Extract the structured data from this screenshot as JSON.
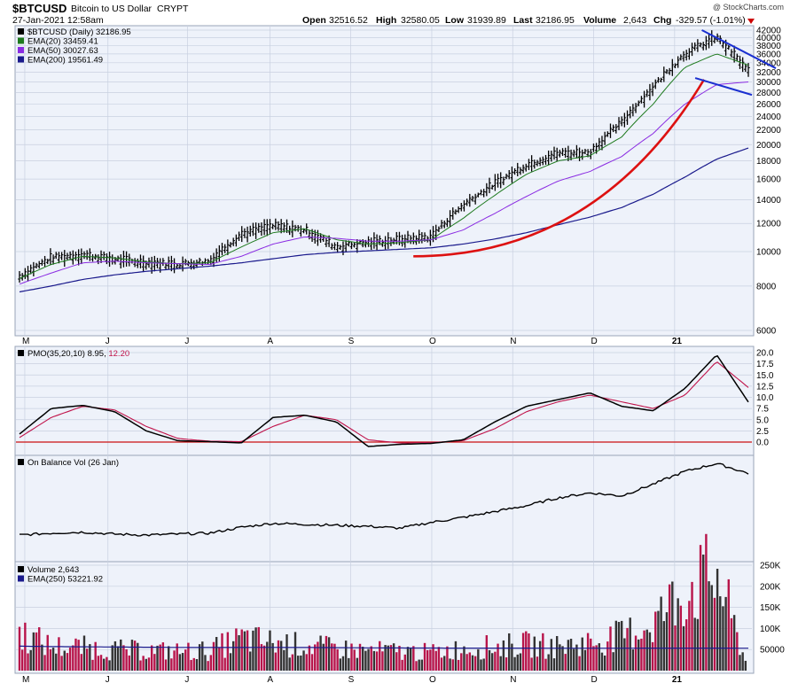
{
  "header": {
    "symbol": "$BTCUSD",
    "name": "Bitcoin to US Dollar",
    "exchange": "CRYPT",
    "timestamp": "27-Jan-2021 12:58am",
    "watermark": "@ StockCharts.com",
    "open_label": "Open",
    "open_value": "32516.52",
    "high_label": "High",
    "high_value": "32580.05",
    "low_label": "Low",
    "low_value": "31939.89",
    "last_label": "Last",
    "last_value": "32186.95",
    "volume_label": "Volume",
    "volume_value": "2,643",
    "chg_label": "Chg",
    "chg_value": "-329.57 (-1.01%)"
  },
  "colors": {
    "background": "#ffffff",
    "panel_background": "#eef2fa",
    "grid": "#c8d0e0",
    "price_bars": "#000000",
    "ema20": "#1e7a1e",
    "ema50": "#8a2be2",
    "ema200": "#1a1a8c",
    "red_curve": "#dd1111",
    "trendlines": "#1a2fd0",
    "pmo": "#000000",
    "pmo_signal": "#c0134a",
    "zero_line": "#cc1111",
    "volume_up": "#b8144a",
    "volume_down": "#333333",
    "volume_ema": "#1a1a8c",
    "chg_down": "#cc0000"
  },
  "price_panel": {
    "legend": [
      {
        "text": "$BTCUSD (Daily) 32186.95",
        "color": "#000000"
      },
      {
        "text": "EMA(20) 33459.41",
        "color": "#1e7a1e"
      },
      {
        "text": "EMA(50) 30027.63",
        "color": "#8a2be2"
      },
      {
        "text": "EMA(200) 19561.49",
        "color": "#1a1a8c"
      }
    ],
    "y_ticks": [
      "42000",
      "40000",
      "38000",
      "36000",
      "34000",
      "32000",
      "30000",
      "28000",
      "26000",
      "24000",
      "22000",
      "20000",
      "18000",
      "16000",
      "14000",
      "12000",
      "10000",
      "8000",
      "6000"
    ]
  },
  "pmo_panel": {
    "label": "PMO(35,20,10)",
    "value": "8.95",
    "signal_value": "12.20",
    "y_ticks": [
      "20.0",
      "17.5",
      "15.0",
      "12.5",
      "10.0",
      "7.5",
      "5.0",
      "2.5",
      "0.0"
    ]
  },
  "obv_panel": {
    "label": "On Balance Vol (26 Jan)"
  },
  "volume_panel": {
    "legend": [
      {
        "text": "Volume 2,643",
        "color": "#000000"
      },
      {
        "text": "EMA(250) 53221.92",
        "color": "#1a1a8c"
      }
    ],
    "y_ticks": [
      "250K",
      "200K",
      "150K",
      "100K",
      "50000"
    ]
  },
  "x_axis": {
    "labels": [
      "M",
      "J",
      "J",
      "A",
      "S",
      "O",
      "N",
      "D",
      "21"
    ]
  },
  "chart_data": [
    {
      "type": "line",
      "title": "$BTCUSD (Daily)",
      "x_labels": [
        "M",
        "J",
        "J",
        "A",
        "S",
        "O",
        "N",
        "D",
        "21"
      ],
      "ylim": [
        6000,
        42000
      ],
      "y_scale": "log",
      "series": [
        {
          "name": "$BTCUSD (Daily)",
          "values": [
            8500,
            9600,
            9800,
            9500,
            9300,
            9200,
            9400,
            11200,
            11800,
            11500,
            10300,
            10600,
            10800,
            11000,
            13500,
            15500,
            17500,
            18900,
            19000,
            23000,
            29000,
            36000,
            40000,
            32187
          ]
        },
        {
          "name": "EMA(20)",
          "values": [
            8400,
            9200,
            9700,
            9600,
            9350,
            9250,
            9300,
            10300,
            11300,
            11600,
            10800,
            10500,
            10600,
            10800,
            12400,
            14400,
            16500,
            18000,
            18600,
            21000,
            26000,
            33000,
            36000,
            33459
          ]
        },
        {
          "name": "EMA(50)",
          "values": [
            8100,
            8700,
            9300,
            9400,
            9300,
            9250,
            9200,
            9700,
            10500,
            11000,
            10900,
            10700,
            10700,
            10800,
            11500,
            12800,
            14300,
            15800,
            16800,
            18500,
            21500,
            26000,
            29500,
            30028
          ]
        },
        {
          "name": "EMA(200)",
          "values": [
            7700,
            8000,
            8350,
            8600,
            8800,
            8950,
            9100,
            9300,
            9550,
            9800,
            9950,
            10050,
            10150,
            10250,
            10500,
            10850,
            11300,
            11900,
            12500,
            13300,
            14500,
            16200,
            18200,
            19561
          ]
        }
      ]
    },
    {
      "type": "line",
      "title": "PMO(35,20,10)",
      "ylim": [
        -1,
        20
      ],
      "series": [
        {
          "name": "PMO(35,20,10)",
          "values": [
            1.8,
            7.5,
            8.2,
            6.8,
            2.5,
            0.3,
            0.1,
            -0.2,
            5.5,
            6.0,
            4.5,
            -1.0,
            -0.5,
            -0.3,
            0.5,
            4.5,
            8.0,
            9.5,
            11.0,
            8.0,
            7.0,
            12.0,
            19.5,
            8.95
          ]
        },
        {
          "name": "Signal",
          "values": [
            1.0,
            5.5,
            8.0,
            7.2,
            3.5,
            0.8,
            0.2,
            0.1,
            3.5,
            6.0,
            5.0,
            0.5,
            -0.2,
            -0.1,
            0.3,
            3.0,
            6.8,
            9.0,
            10.5,
            9.0,
            7.5,
            10.5,
            18.0,
            12.2
          ]
        }
      ]
    },
    {
      "type": "line",
      "title": "On Balance Vol (26 Jan)",
      "series": [
        {
          "name": "On Balance Vol",
          "values": [
            -1.0,
            -0.8,
            -0.7,
            -0.9,
            -1.0,
            -0.9,
            -0.8,
            -0.2,
            0.2,
            0.1,
            0.0,
            -0.1,
            -0.3,
            0.3,
            0.8,
            1.4,
            2.0,
            2.8,
            3.3,
            3.0,
            4.2,
            5.5,
            6.3,
            5.3
          ]
        }
      ]
    },
    {
      "type": "bar",
      "title": "Volume",
      "ylim": [
        0,
        250000
      ],
      "series": [
        {
          "name": "Volume",
          "values": [
            95000,
            60000,
            58000,
            52000,
            50000,
            48000,
            50000,
            80000,
            70000,
            62000,
            55000,
            50000,
            48000,
            45000,
            55000,
            60000,
            65000,
            60000,
            70000,
            85000,
            120000,
            200000,
            240000,
            2643
          ]
        },
        {
          "name": "EMA(250)",
          "values": [
            58000,
            57000,
            56500,
            56000,
            55500,
            55000,
            54800,
            54900,
            55000,
            54800,
            54500,
            54000,
            53700,
            53500,
            53400,
            53300,
            53300,
            53200,
            53200,
            53200,
            53300,
            53400,
            53300,
            53222
          ]
        }
      ]
    }
  ]
}
